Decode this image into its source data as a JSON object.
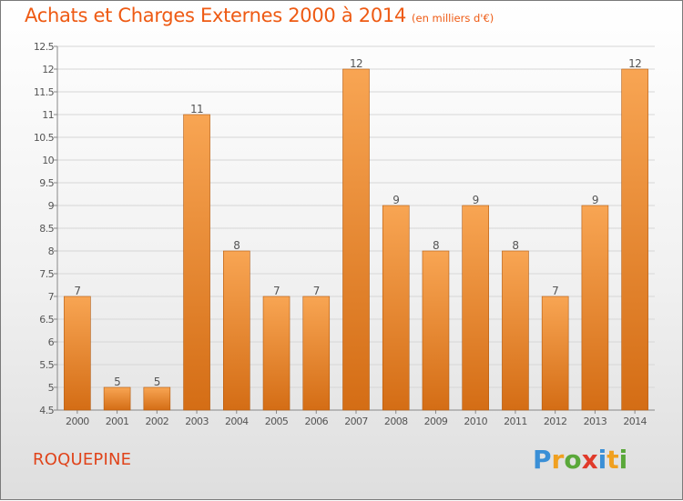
{
  "header": {
    "title": "Achats et Charges Externes 2000 à 2014",
    "unit": "(en milliers d'€)"
  },
  "footer": {
    "commune": "ROQUEPINE",
    "logo": "Proxiti"
  },
  "colors": {
    "bar_light": "#f8a553",
    "bar_dark": "#d46d15",
    "title": "#ee5a13"
  },
  "chart_data": {
    "type": "bar",
    "title": "Achats et Charges Externes 2000 à 2014",
    "xlabel": "",
    "ylabel": "",
    "categories": [
      "2000",
      "2001",
      "2002",
      "2003",
      "2004",
      "2005",
      "2006",
      "2007",
      "2008",
      "2009",
      "2010",
      "2011",
      "2012",
      "2013",
      "2014"
    ],
    "values": [
      7,
      5,
      5,
      11,
      8,
      7,
      7,
      12,
      9,
      8,
      9,
      8,
      7,
      9,
      12
    ],
    "ylim": [
      4.5,
      12.5
    ],
    "yticks": [
      "4.5",
      "5",
      "5.5",
      "6",
      "6.5",
      "7",
      "7.5",
      "8",
      "8.5",
      "9",
      "9.5",
      "10",
      "10.5",
      "11",
      "11.5",
      "12",
      "12.5"
    ],
    "grid": true,
    "legend": "none"
  }
}
